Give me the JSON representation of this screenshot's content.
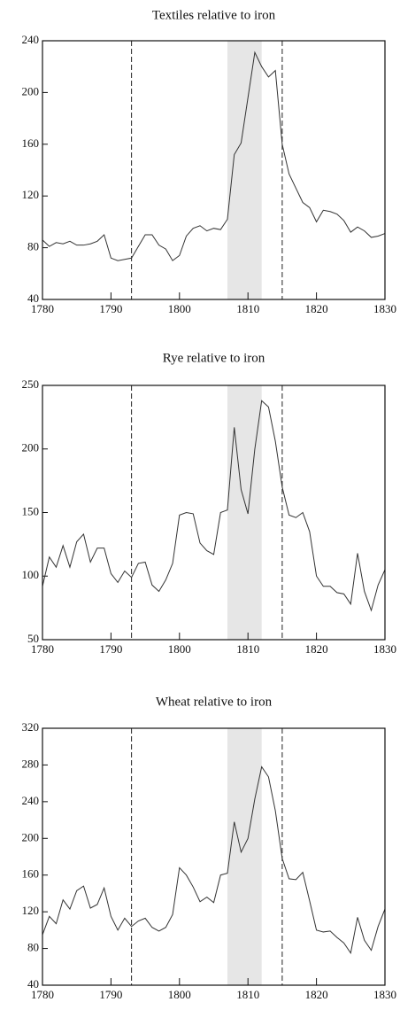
{
  "chart_data": [
    {
      "type": "line",
      "title": "Textiles relative to iron",
      "color": "#333333",
      "x": [
        1780,
        1781,
        1782,
        1783,
        1784,
        1785,
        1786,
        1787,
        1788,
        1789,
        1790,
        1791,
        1792,
        1793,
        1794,
        1795,
        1796,
        1797,
        1798,
        1799,
        1800,
        1801,
        1802,
        1803,
        1804,
        1805,
        1806,
        1807,
        1808,
        1809,
        1810,
        1811,
        1812,
        1813,
        1814,
        1815,
        1816,
        1817,
        1818,
        1819,
        1820,
        1821,
        1822,
        1823,
        1824,
        1825,
        1826,
        1827,
        1828,
        1829,
        1830
      ],
      "values": [
        86,
        81,
        84,
        83,
        85,
        82,
        82,
        83,
        85,
        90,
        72,
        70,
        71,
        72,
        81,
        90,
        90,
        82,
        79,
        70,
        74,
        89,
        95,
        97,
        93,
        95,
        94,
        102,
        152,
        161,
        196,
        231,
        220,
        212,
        217,
        160,
        137,
        126,
        115,
        111,
        100,
        109,
        108,
        106,
        101,
        92,
        96,
        93,
        88,
        89,
        91
      ],
      "xlim": [
        1780,
        1830
      ],
      "ylim": [
        40,
        240
      ],
      "xticks": [
        1780,
        1790,
        1800,
        1810,
        1820,
        1830
      ],
      "yticks": [
        40,
        80,
        120,
        160,
        200,
        240
      ],
      "shaded": [
        1807,
        1812
      ],
      "vlines": [
        1793,
        1815
      ]
    },
    {
      "type": "line",
      "title": "Rye relative to iron",
      "color": "#333333",
      "x": [
        1780,
        1781,
        1782,
        1783,
        1784,
        1785,
        1786,
        1787,
        1788,
        1789,
        1790,
        1791,
        1792,
        1793,
        1794,
        1795,
        1796,
        1797,
        1798,
        1799,
        1800,
        1801,
        1802,
        1803,
        1804,
        1805,
        1806,
        1807,
        1808,
        1809,
        1810,
        1811,
        1812,
        1813,
        1814,
        1815,
        1816,
        1817,
        1818,
        1819,
        1820,
        1821,
        1822,
        1823,
        1824,
        1825,
        1826,
        1827,
        1828,
        1829,
        1830
      ],
      "values": [
        92,
        115,
        107,
        124,
        107,
        127,
        133,
        111,
        122,
        122,
        102,
        95,
        104,
        99,
        110,
        111,
        93,
        88,
        97,
        110,
        148,
        150,
        149,
        126,
        120,
        117,
        150,
        152,
        217,
        168,
        149,
        200,
        238,
        233,
        206,
        170,
        148,
        146,
        150,
        135,
        100,
        92,
        92,
        87,
        86,
        78,
        118,
        88,
        73,
        93,
        105
      ],
      "xlim": [
        1780,
        1830
      ],
      "ylim": [
        50,
        250
      ],
      "xticks": [
        1780,
        1790,
        1800,
        1810,
        1820,
        1830
      ],
      "yticks": [
        50,
        100,
        150,
        200,
        250
      ],
      "shaded": [
        1807,
        1812
      ],
      "vlines": [
        1793,
        1815
      ]
    },
    {
      "type": "line",
      "title": "Wheat relative to iron",
      "color": "#333333",
      "x": [
        1780,
        1781,
        1782,
        1783,
        1784,
        1785,
        1786,
        1787,
        1788,
        1789,
        1790,
        1791,
        1792,
        1793,
        1794,
        1795,
        1796,
        1797,
        1798,
        1799,
        1800,
        1801,
        1802,
        1803,
        1804,
        1805,
        1806,
        1807,
        1808,
        1809,
        1810,
        1811,
        1812,
        1813,
        1814,
        1815,
        1816,
        1817,
        1818,
        1819,
        1820,
        1821,
        1822,
        1823,
        1824,
        1825,
        1826,
        1827,
        1828,
        1829,
        1830
      ],
      "values": [
        95,
        115,
        107,
        133,
        123,
        143,
        148,
        124,
        128,
        146,
        115,
        100,
        113,
        104,
        110,
        113,
        103,
        99,
        103,
        117,
        168,
        160,
        147,
        131,
        136,
        130,
        160,
        162,
        218,
        185,
        200,
        243,
        278,
        267,
        230,
        178,
        156,
        155,
        163,
        132,
        100,
        98,
        99,
        92,
        86,
        75,
        114,
        89,
        78,
        104,
        123
      ],
      "xlim": [
        1780,
        1830
      ],
      "ylim": [
        40,
        320
      ],
      "xticks": [
        1780,
        1790,
        1800,
        1810,
        1820,
        1830
      ],
      "yticks": [
        40,
        80,
        120,
        160,
        200,
        240,
        280,
        320
      ],
      "shaded": [
        1807,
        1812
      ],
      "vlines": [
        1793,
        1815
      ]
    }
  ]
}
